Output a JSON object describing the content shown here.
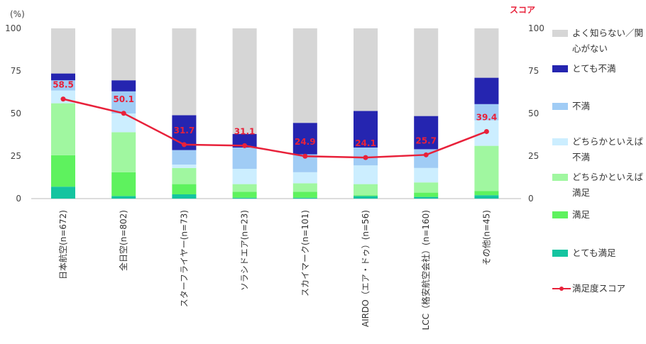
{
  "chart_data": {
    "type": "bar",
    "stacked": true,
    "unit_label": "(%)",
    "secondary_axis_title": "スコア",
    "ylim": [
      0,
      100
    ],
    "yticks": [
      0,
      25,
      50,
      75,
      100
    ],
    "categories": [
      "日本航空(n=672)",
      "全日空(n=802)",
      "スターフライヤー(n=73)",
      "ソラシドエア(n=23)",
      "スカイマーク(n=101)",
      "AIRDO（エア・ドゥ）(n=56)",
      "LCC（格安航空会社）(n=160)",
      "その他(n=45)"
    ],
    "series": [
      {
        "name": "とても満足",
        "color": "#14c4a0",
        "values": [
          7,
          1.5,
          2.5,
          0.5,
          0.5,
          1.5,
          1,
          2
        ]
      },
      {
        "name": "満足",
        "color": "#5ef25e",
        "values": [
          18.5,
          14,
          6,
          3.5,
          3.5,
          0.5,
          2.5,
          2.5
        ]
      },
      {
        "name": "どちらかといえば満足",
        "color": "#a0f7a0",
        "values": [
          30.5,
          23.5,
          9.5,
          4.5,
          5,
          6.5,
          6,
          26.5
        ]
      },
      {
        "name": "どちらかといえば不満",
        "color": "#cceeff",
        "values": [
          7.5,
          11,
          2,
          9,
          6.5,
          11,
          8.5,
          15
        ]
      },
      {
        "name": "不満",
        "color": "#a0ccf5",
        "values": [
          6,
          13,
          8.5,
          12.5,
          10.5,
          10.5,
          11,
          9.5
        ]
      },
      {
        "name": "とても不満",
        "color": "#2525b0",
        "values": [
          4,
          6.5,
          20.5,
          8,
          18.5,
          21.5,
          19.5,
          15.5
        ]
      },
      {
        "name": "よく知らない／関心がない",
        "color": "#d6d6d6",
        "values": [
          26.5,
          30.5,
          51,
          62,
          55.5,
          48.5,
          51.5,
          29
        ]
      }
    ],
    "score_series": {
      "name": "満足度スコア",
      "color": "#e8213a",
      "values": [
        58.5,
        50.1,
        31.7,
        31.1,
        24.9,
        24.1,
        25.7,
        39.4
      ]
    }
  },
  "legend": {
    "items": [
      {
        "label": "よく知らない／関心がない",
        "color": "#d6d6d6",
        "kind": "box"
      },
      {
        "label": "とても不満",
        "color": "#2525b0",
        "kind": "box"
      },
      {
        "label": "不満",
        "color": "#a0ccf5",
        "kind": "box"
      },
      {
        "label": "どちらかといえば不満",
        "color": "#cceeff",
        "kind": "box"
      },
      {
        "label": "どちらかといえば満足",
        "color": "#a0f7a0",
        "kind": "box"
      },
      {
        "label": "満足",
        "color": "#5ef25e",
        "kind": "box"
      },
      {
        "label": "とても満足",
        "color": "#14c4a0",
        "kind": "box"
      },
      {
        "label": "満足度スコア",
        "color": "#e8213a",
        "kind": "line"
      }
    ]
  }
}
